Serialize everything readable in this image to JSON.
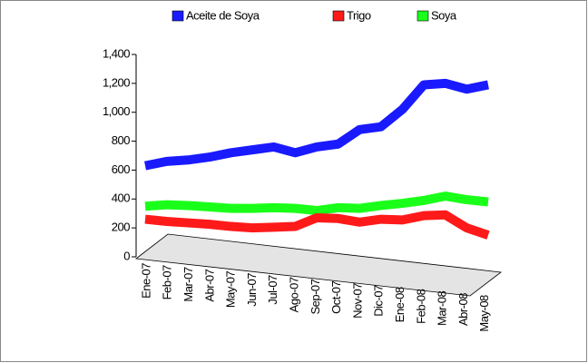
{
  "chart_data": {
    "type": "line",
    "categories": [
      "Ene-07",
      "Feb-07",
      "Mar-07",
      "Abr-07",
      "May-07",
      "Jun-07",
      "Jul-07",
      "Ago-07",
      "Sep-07",
      "Oct-07",
      "Nov-07",
      "Dic-07",
      "Ene-08",
      "Feb-08",
      "Mar-08",
      "Abr-08",
      "May-08"
    ],
    "series": [
      {
        "name": "Aceite de Soya",
        "color": "#1a1aff",
        "values": [
          630,
          660,
          670,
          690,
          720,
          740,
          760,
          720,
          760,
          780,
          880,
          900,
          1020,
          1190,
          1200,
          1160,
          1190
        ]
      },
      {
        "name": "Trigo",
        "color": "#ff1a1a",
        "values": [
          260,
          245,
          235,
          225,
          210,
          200,
          205,
          210,
          270,
          265,
          240,
          260,
          255,
          285,
          290,
          200,
          150
        ]
      },
      {
        "name": "Soya",
        "color": "#1aff1a",
        "values": [
          350,
          360,
          355,
          345,
          335,
          335,
          340,
          335,
          320,
          340,
          335,
          355,
          370,
          390,
          420,
          395,
          380
        ]
      }
    ],
    "ylim": [
      0,
      1400
    ],
    "yticks": [
      0,
      200,
      400,
      600,
      800,
      {
        "value": 1000,
        "label": "1,000"
      },
      {
        "value": 1200,
        "label": "1,200"
      },
      {
        "value": 1400,
        "label": "1,400"
      }
    ]
  }
}
